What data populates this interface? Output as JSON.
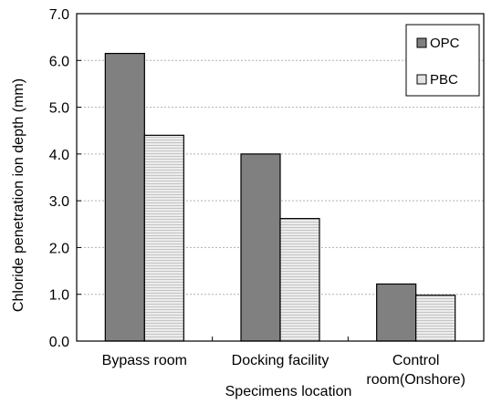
{
  "chart_data": {
    "type": "bar",
    "title": "",
    "xlabel": "Specimens location",
    "ylabel": "Chloride penetration ion depth (mm)",
    "categories": [
      [
        "Bypass room"
      ],
      [
        "Docking facility"
      ],
      [
        "Control",
        "room(Onshore)"
      ]
    ],
    "series": [
      {
        "name": "OPC",
        "values": [
          6.15,
          4.0,
          1.22
        ]
      },
      {
        "name": "PBC",
        "values": [
          4.4,
          2.62,
          0.98
        ]
      }
    ],
    "ylim": [
      0,
      7.0
    ],
    "yticks": [
      "0.0",
      "1.0",
      "2.0",
      "3.0",
      "4.0",
      "5.0",
      "6.0",
      "7.0"
    ],
    "grid": true,
    "legend_position": "top-right",
    "colors": {
      "OPC": "#808080",
      "PBC": "#e3e3e3",
      "axis": "#000000",
      "grid": "#b0b0b0"
    }
  }
}
